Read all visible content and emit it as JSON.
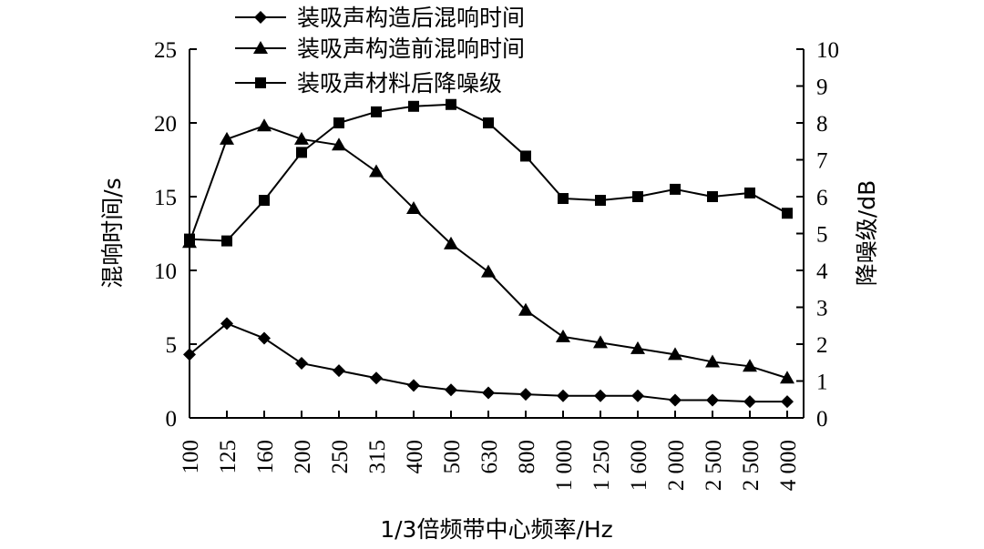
{
  "chart_data": {
    "type": "line",
    "categories": [
      "100",
      "125",
      "160",
      "200",
      "250",
      "315",
      "400",
      "500",
      "630",
      "800",
      "1 000",
      "1 250",
      "1 600",
      "2 000",
      "2 500",
      "2 500",
      "4 000"
    ],
    "xlabel": "1/3倍频带中心频率/Hz",
    "ylabel": "混响时间/s",
    "y2label": "降噪级/dB",
    "ylim": [
      0,
      25
    ],
    "y2lim": [
      0,
      10
    ],
    "yticks": [
      "0",
      "5",
      "10",
      "15",
      "20",
      "25"
    ],
    "y2ticks": [
      "0",
      "1",
      "2",
      "3",
      "4",
      "5",
      "6",
      "7",
      "8",
      "9",
      "10"
    ],
    "grid": false,
    "legend_position": "top-left",
    "series": [
      {
        "name": "装吸声构造后混响时间",
        "marker": "diamond",
        "axis": "left",
        "values": [
          4.3,
          6.4,
          5.4,
          3.7,
          3.2,
          2.7,
          2.2,
          1.9,
          1.7,
          1.6,
          1.5,
          1.5,
          1.5,
          1.2,
          1.2,
          1.1,
          1.1
        ]
      },
      {
        "name": "装吸声构造前混响时间",
        "marker": "triangle",
        "axis": "left",
        "values": [
          11.9,
          18.9,
          19.8,
          18.9,
          18.5,
          16.7,
          14.2,
          11.8,
          9.9,
          7.3,
          5.5,
          5.1,
          4.7,
          4.3,
          3.8,
          3.5,
          2.7
        ]
      },
      {
        "name": "装吸声材料后降噪级",
        "marker": "square",
        "axis": "right",
        "values": [
          4.85,
          4.8,
          5.9,
          7.2,
          8.0,
          8.3,
          8.45,
          8.5,
          8.0,
          7.1,
          5.95,
          5.9,
          6.0,
          6.2,
          6.0,
          6.1,
          5.55
        ]
      }
    ]
  }
}
